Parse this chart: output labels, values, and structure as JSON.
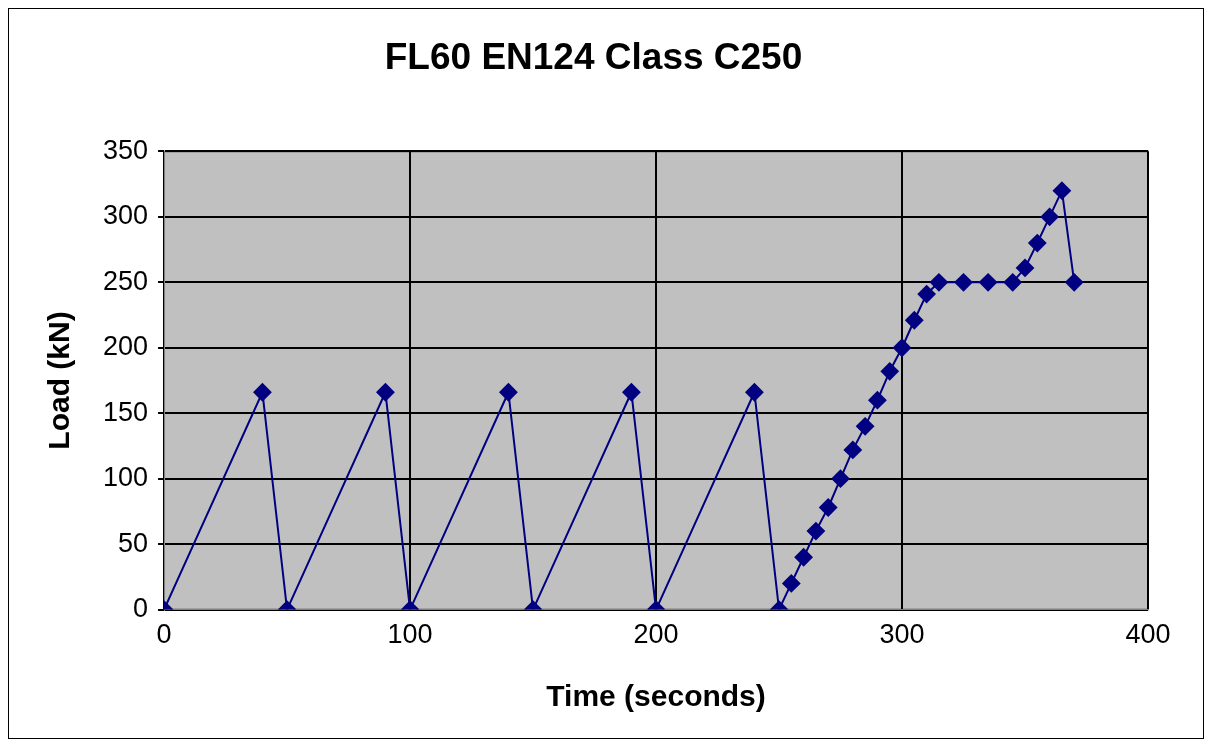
{
  "chart_data": {
    "type": "line",
    "title": "FL60 EN124 Class C250",
    "xlabel": "Time (seconds)",
    "ylabel": "Load (kN)",
    "x": [
      0,
      40,
      50,
      90,
      100,
      140,
      150,
      190,
      200,
      240,
      250,
      255,
      260,
      265,
      270,
      275,
      280,
      285,
      290,
      295,
      300,
      305,
      310,
      315,
      325,
      335,
      345,
      350,
      355,
      360,
      365,
      370
    ],
    "series": [
      {
        "color": "#000080",
        "values": [
          0,
          166,
          0,
          166,
          0,
          166,
          0,
          166,
          0,
          166,
          0,
          20,
          40,
          60,
          78,
          100,
          122,
          140,
          160,
          182,
          200,
          221,
          241,
          250,
          250,
          250,
          250,
          261,
          280,
          300,
          320,
          250
        ]
      }
    ],
    "xlim": [
      0,
      400
    ],
    "xticks": [
      0,
      100,
      200,
      300,
      400
    ],
    "ylim": [
      0,
      350
    ],
    "yticks": [
      0,
      50,
      100,
      150,
      200,
      250,
      300,
      350
    ],
    "grid": true,
    "legend": false,
    "marker": "diamond",
    "line_style": "solid"
  }
}
